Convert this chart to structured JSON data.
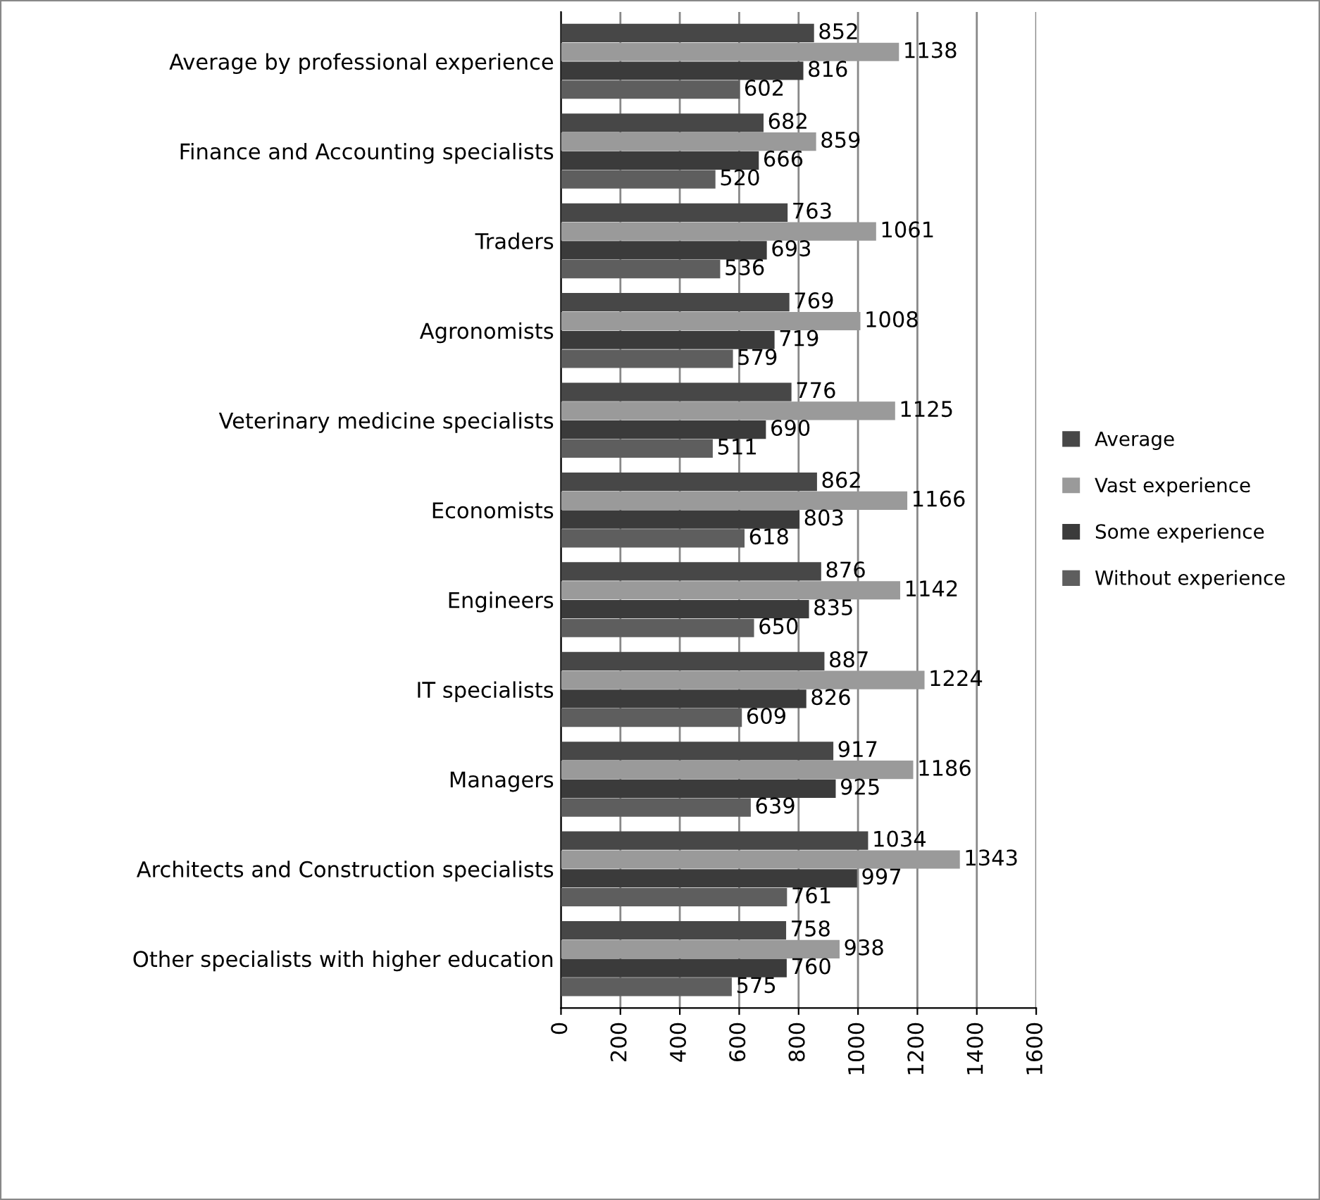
{
  "chart_data": {
    "type": "bar",
    "orientation": "horizontal",
    "categories": [
      "Average by professional experience",
      "Finance and Accounting specialists",
      "Traders",
      "Agronomists",
      "Veterinary medicine specialists",
      "Economists",
      "Engineers",
      "IT specialists",
      "Managers",
      "Architects and Construction specialists",
      "Other specialists with higher education"
    ],
    "series": [
      {
        "name": "Average",
        "color": "#474747",
        "values": [
          852,
          682,
          763,
          769,
          776,
          862,
          876,
          887,
          917,
          1034,
          758
        ]
      },
      {
        "name": "Vast experience",
        "color": "#9a9a9a",
        "values": [
          1138,
          859,
          1061,
          1008,
          1125,
          1166,
          1142,
          1224,
          1186,
          1343,
          938
        ]
      },
      {
        "name": "Some experience",
        "color": "#3b3b3b",
        "values": [
          816,
          666,
          693,
          719,
          690,
          803,
          835,
          826,
          925,
          997,
          760
        ]
      },
      {
        "name": "Without experience",
        "color": "#5e5e5e",
        "values": [
          602,
          520,
          536,
          579,
          511,
          618,
          650,
          609,
          639,
          761,
          575
        ]
      }
    ],
    "xlim": [
      0,
      1600
    ],
    "xticks": [
      0,
      200,
      400,
      600,
      800,
      1000,
      1200,
      1400,
      1600
    ],
    "grid": "x",
    "legend": "right",
    "data_labels": true
  }
}
